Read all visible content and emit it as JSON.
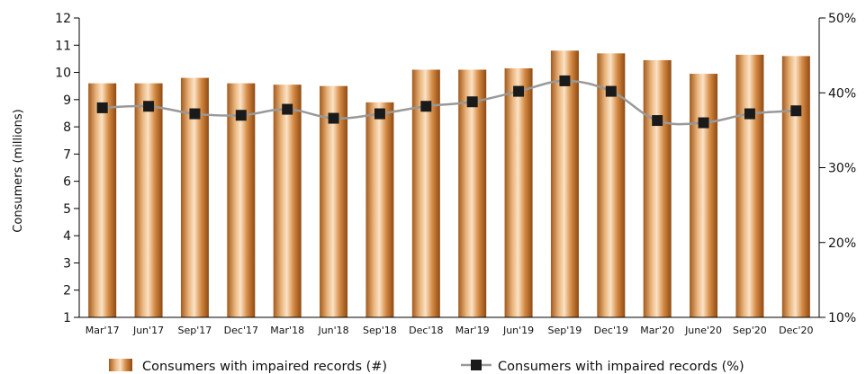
{
  "chart_data": {
    "type": "bar",
    "categories": [
      "Mar'17",
      "Jun'17",
      "Sep'17",
      "Dec'17",
      "Mar'18",
      "Jun'18",
      "Sep'18",
      "Dec'18",
      "Mar'19",
      "Jun'19",
      "Sep'19",
      "Dec'19",
      "Mar'20",
      "June'20",
      "Sep'20",
      "Dec'20"
    ],
    "ylabel": "Consumers (millions)",
    "ylim": [
      1,
      12
    ],
    "y_ticks": [
      "1",
      "2",
      "3",
      "4",
      "5",
      "6",
      "7",
      "8",
      "9",
      "10",
      "11",
      "12"
    ],
    "y2lim": [
      10,
      50
    ],
    "y2_ticks": [
      "10%",
      "20%",
      "30%",
      "40%",
      "50%"
    ],
    "series": [
      {
        "name": "Consumers with impaired records (#)",
        "type": "bar",
        "axis": "left",
        "values": [
          9.6,
          9.6,
          9.8,
          9.6,
          9.55,
          9.5,
          8.9,
          10.1,
          10.1,
          10.15,
          10.8,
          10.7,
          10.45,
          9.95,
          10.65,
          10.6
        ],
        "color": "#c8803a"
      },
      {
        "name": "Consumers with impaired records (%)",
        "type": "line",
        "axis": "right",
        "values": [
          38.0,
          38.2,
          37.2,
          37.0,
          37.8,
          36.6,
          37.2,
          38.2,
          38.8,
          40.2,
          41.6,
          40.2,
          36.3,
          36.0,
          37.2,
          37.6
        ],
        "color": "#999999",
        "marker_color": "#1a1a1a"
      }
    ],
    "grid": false,
    "legend_position": "bottom"
  }
}
